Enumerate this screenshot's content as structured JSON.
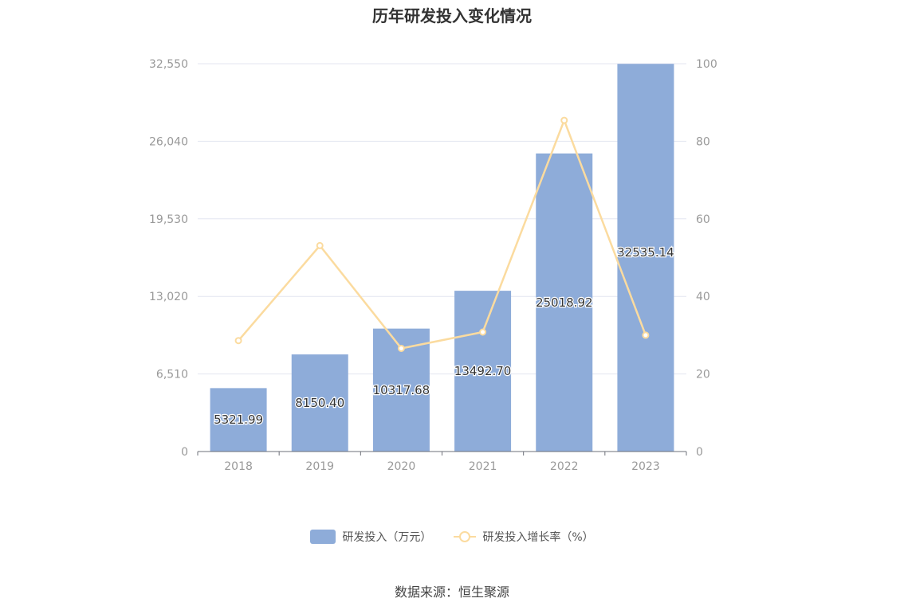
{
  "title": "历年研发投入变化情况",
  "source": "数据来源：恒生聚源",
  "colors": {
    "bar": "#8eacd9",
    "line": "#fbdb9f",
    "grid": "#e3e6f0",
    "axis": "#6e7079",
    "tick": "#999999"
  },
  "chart_data": {
    "type": "bar",
    "categories": [
      "2018",
      "2019",
      "2020",
      "2021",
      "2022",
      "2023"
    ],
    "series": [
      {
        "name": "研发投入（万元）",
        "type": "bar",
        "axis": "left",
        "values": [
          5321.99,
          8150.4,
          10317.68,
          13492.7,
          25018.92,
          32535.14
        ],
        "labels": [
          "5321.99",
          "8150.40",
          "10317.68",
          "13492.70",
          "25018.92",
          "32535.14"
        ]
      },
      {
        "name": "研发投入增长率（%）",
        "type": "line",
        "axis": "right",
        "values": [
          28.6,
          53.1,
          26.6,
          30.8,
          85.4,
          30.0
        ]
      }
    ],
    "y_left": {
      "ylim": [
        0,
        32550
      ],
      "ticks": [
        0,
        6510,
        13020,
        19530,
        26040,
        32550
      ],
      "tick_labels": [
        "0",
        "6,510",
        "13,020",
        "19,530",
        "26,040",
        "32,550"
      ]
    },
    "y_right": {
      "ylim": [
        0,
        100
      ],
      "ticks": [
        0,
        20,
        40,
        60,
        80,
        100
      ],
      "tick_labels": [
        "0",
        "20",
        "40",
        "60",
        "80",
        "100"
      ]
    },
    "grid": true,
    "legend_position": "bottom"
  }
}
